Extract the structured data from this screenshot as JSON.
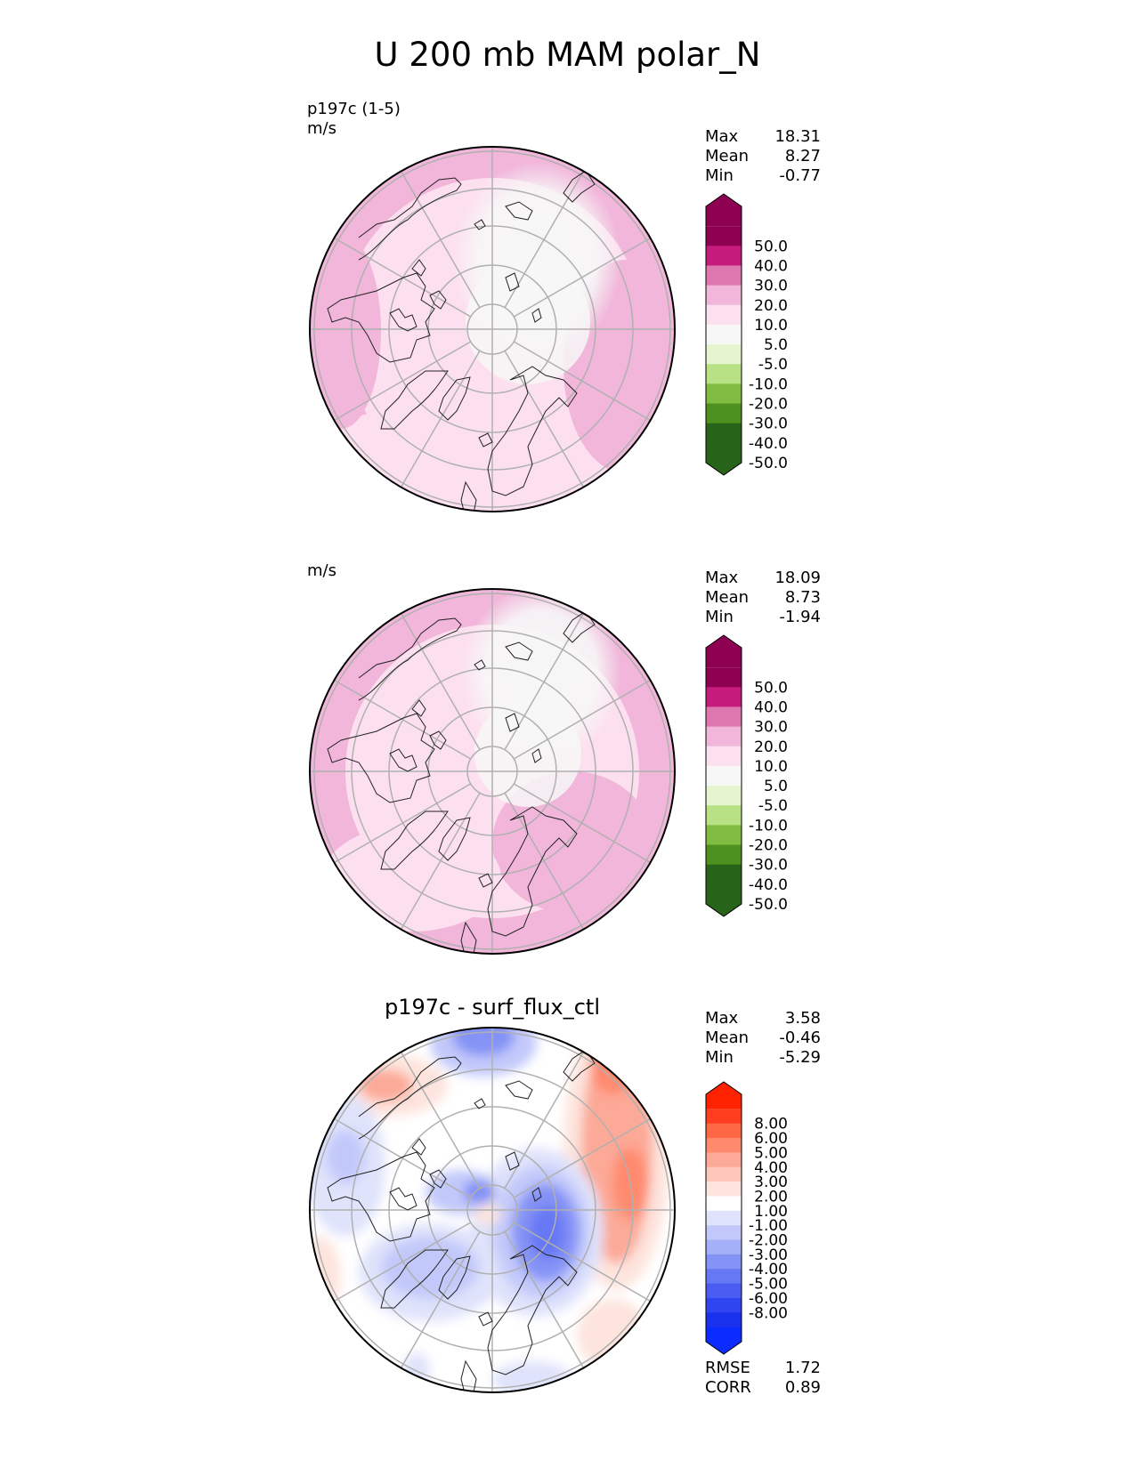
{
  "title": "U 200 mb MAM polar_N",
  "panels": [
    {
      "label1": "p197c (1-5)",
      "label2": "m/s",
      "title": "",
      "stats": [
        {
          "label": "Max",
          "value": "18.31"
        },
        {
          "label": "Mean",
          "value": "8.27"
        },
        {
          "label": "Min",
          "value": "-0.77"
        }
      ],
      "colorbar": {
        "ticks": [
          "50.0",
          "40.0",
          "30.0",
          "20.0",
          "10.0",
          "5.0",
          "-5.0",
          "-10.0",
          "-20.0",
          "-30.0",
          "-40.0",
          "-50.0"
        ],
        "colors": [
          "#8e0152",
          "#c51b7d",
          "#de77ae",
          "#f1b6da",
          "#fde0ef",
          "#f7f7f7",
          "#e6f5d0",
          "#b8e186",
          "#7fbc41",
          "#4d9221",
          "#276419"
        ],
        "top_color": "#8e0152",
        "bottom_color": "#276419"
      },
      "extra": []
    },
    {
      "label1": "",
      "label2": "m/s",
      "title": "",
      "stats": [
        {
          "label": "Max",
          "value": "18.09"
        },
        {
          "label": "Mean",
          "value": "8.73"
        },
        {
          "label": "Min",
          "value": "-1.94"
        }
      ],
      "colorbar": {
        "ticks": [
          "50.0",
          "40.0",
          "30.0",
          "20.0",
          "10.0",
          "5.0",
          "-5.0",
          "-10.0",
          "-20.0",
          "-30.0",
          "-40.0",
          "-50.0"
        ],
        "colors": [
          "#8e0152",
          "#c51b7d",
          "#de77ae",
          "#f1b6da",
          "#fde0ef",
          "#f7f7f7",
          "#e6f5d0",
          "#b8e186",
          "#7fbc41",
          "#4d9221",
          "#276419"
        ],
        "top_color": "#8e0152",
        "bottom_color": "#276419"
      },
      "extra": []
    },
    {
      "label1": "",
      "label2": "",
      "title": "p197c - surf_flux_ctl",
      "stats": [
        {
          "label": "Max",
          "value": "3.58"
        },
        {
          "label": "Mean",
          "value": "-0.46"
        },
        {
          "label": "Min",
          "value": "-5.29"
        }
      ],
      "colorbar": {
        "ticks": [
          "8.00",
          "6.00",
          "5.00",
          "4.00",
          "3.00",
          "2.00",
          "1.00",
          "-1.00",
          "-2.00",
          "-3.00",
          "-4.00",
          "-5.00",
          "-6.00",
          "-8.00"
        ],
        "colors": [
          "#ff3d1f",
          "#ff6845",
          "#ff8a6e",
          "#fca997",
          "#fdc7bb",
          "#fde4dd",
          "#ffffff",
          "#dfe3fb",
          "#c2c9fa",
          "#a4b0f8",
          "#8593f6",
          "#6678f4",
          "#4a5cf2",
          "#2f45f0",
          "#1a32ee"
        ],
        "top_color": "#ff2200",
        "bottom_color": "#0b2bff"
      },
      "extra": [
        {
          "label": "RMSE",
          "value": "1.72"
        },
        {
          "label": "CORR",
          "value": "0.89"
        }
      ]
    }
  ],
  "chart_data": [
    {
      "type": "heatmap",
      "projection": "north polar stereographic",
      "title": "",
      "units": "m/s",
      "series_label": "p197c (1-5)",
      "summary": {
        "max": 18.31,
        "mean": 8.27,
        "min": -0.77
      },
      "contour_levels": [
        -50,
        -40,
        -30,
        -20,
        -10,
        -5,
        5,
        10,
        20,
        30,
        40,
        50
      ]
    },
    {
      "type": "heatmap",
      "projection": "north polar stereographic",
      "title": "",
      "units": "m/s",
      "summary": {
        "max": 18.09,
        "mean": 8.73,
        "min": -1.94
      },
      "contour_levels": [
        -50,
        -40,
        -30,
        -20,
        -10,
        -5,
        5,
        10,
        20,
        30,
        40,
        50
      ]
    },
    {
      "type": "heatmap",
      "projection": "north polar stereographic",
      "title": "p197c - surf_flux_ctl",
      "summary": {
        "max": 3.58,
        "mean": -0.46,
        "min": -5.29,
        "rmse": 1.72,
        "corr": 0.89
      },
      "contour_levels": [
        -8,
        -6,
        -5,
        -4,
        -3,
        -2,
        -1,
        1,
        2,
        3,
        4,
        5,
        6,
        8
      ]
    }
  ]
}
